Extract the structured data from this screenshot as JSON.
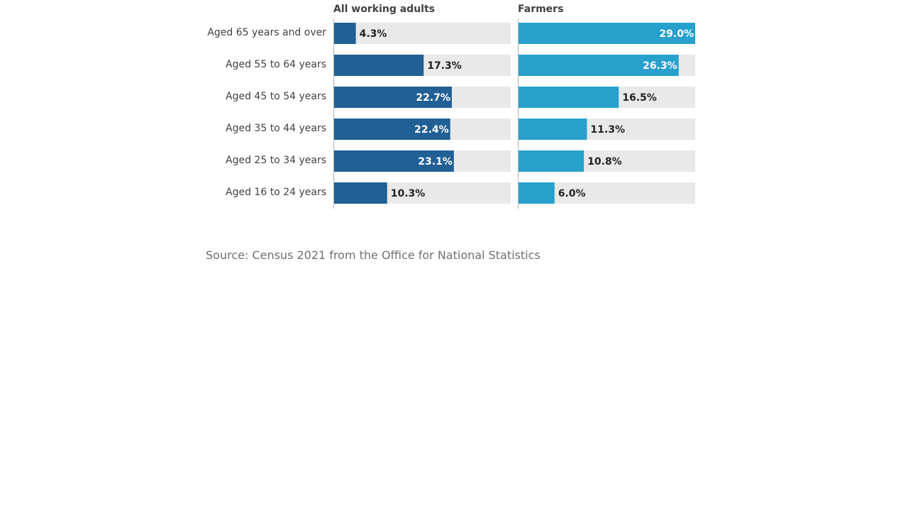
{
  "chart_data": {
    "type": "bar",
    "orientation": "horizontal",
    "layout": "small-multiples",
    "categories": [
      "Aged 65 years and over",
      "Aged 55 to 64 years",
      "Aged 45 to 54 years",
      "Aged 35 to 44 years",
      "Aged 25 to 34 years",
      "Aged 16 to 24 years"
    ],
    "series": [
      {
        "name": "All working adults",
        "values": [
          4.3,
          17.3,
          22.7,
          22.4,
          23.1,
          10.3
        ],
        "labels": [
          "4.3%",
          "17.3%",
          "22.7%",
          "22.4%",
          "23.1%",
          "10.3%"
        ],
        "xlim": [
          0,
          34
        ],
        "color": "#206095"
      },
      {
        "name": "Farmers",
        "values": [
          29.0,
          26.3,
          16.5,
          11.3,
          10.8,
          6.0
        ],
        "labels": [
          "29.0%",
          "26.3%",
          "16.5%",
          "11.3%",
          "10.8%",
          "6.0%"
        ],
        "xlim": [
          0,
          29
        ],
        "color": "#27a0cc"
      }
    ],
    "track_color": "#e9e9e9",
    "axis_color": "#b3b3b3",
    "label_color_inside": "#ffffff",
    "label_color_outside": "#222222",
    "category_label_color": "#414042",
    "title_color": "#414042",
    "source": "Source: Census 2021 from the Office for National Statistics"
  }
}
